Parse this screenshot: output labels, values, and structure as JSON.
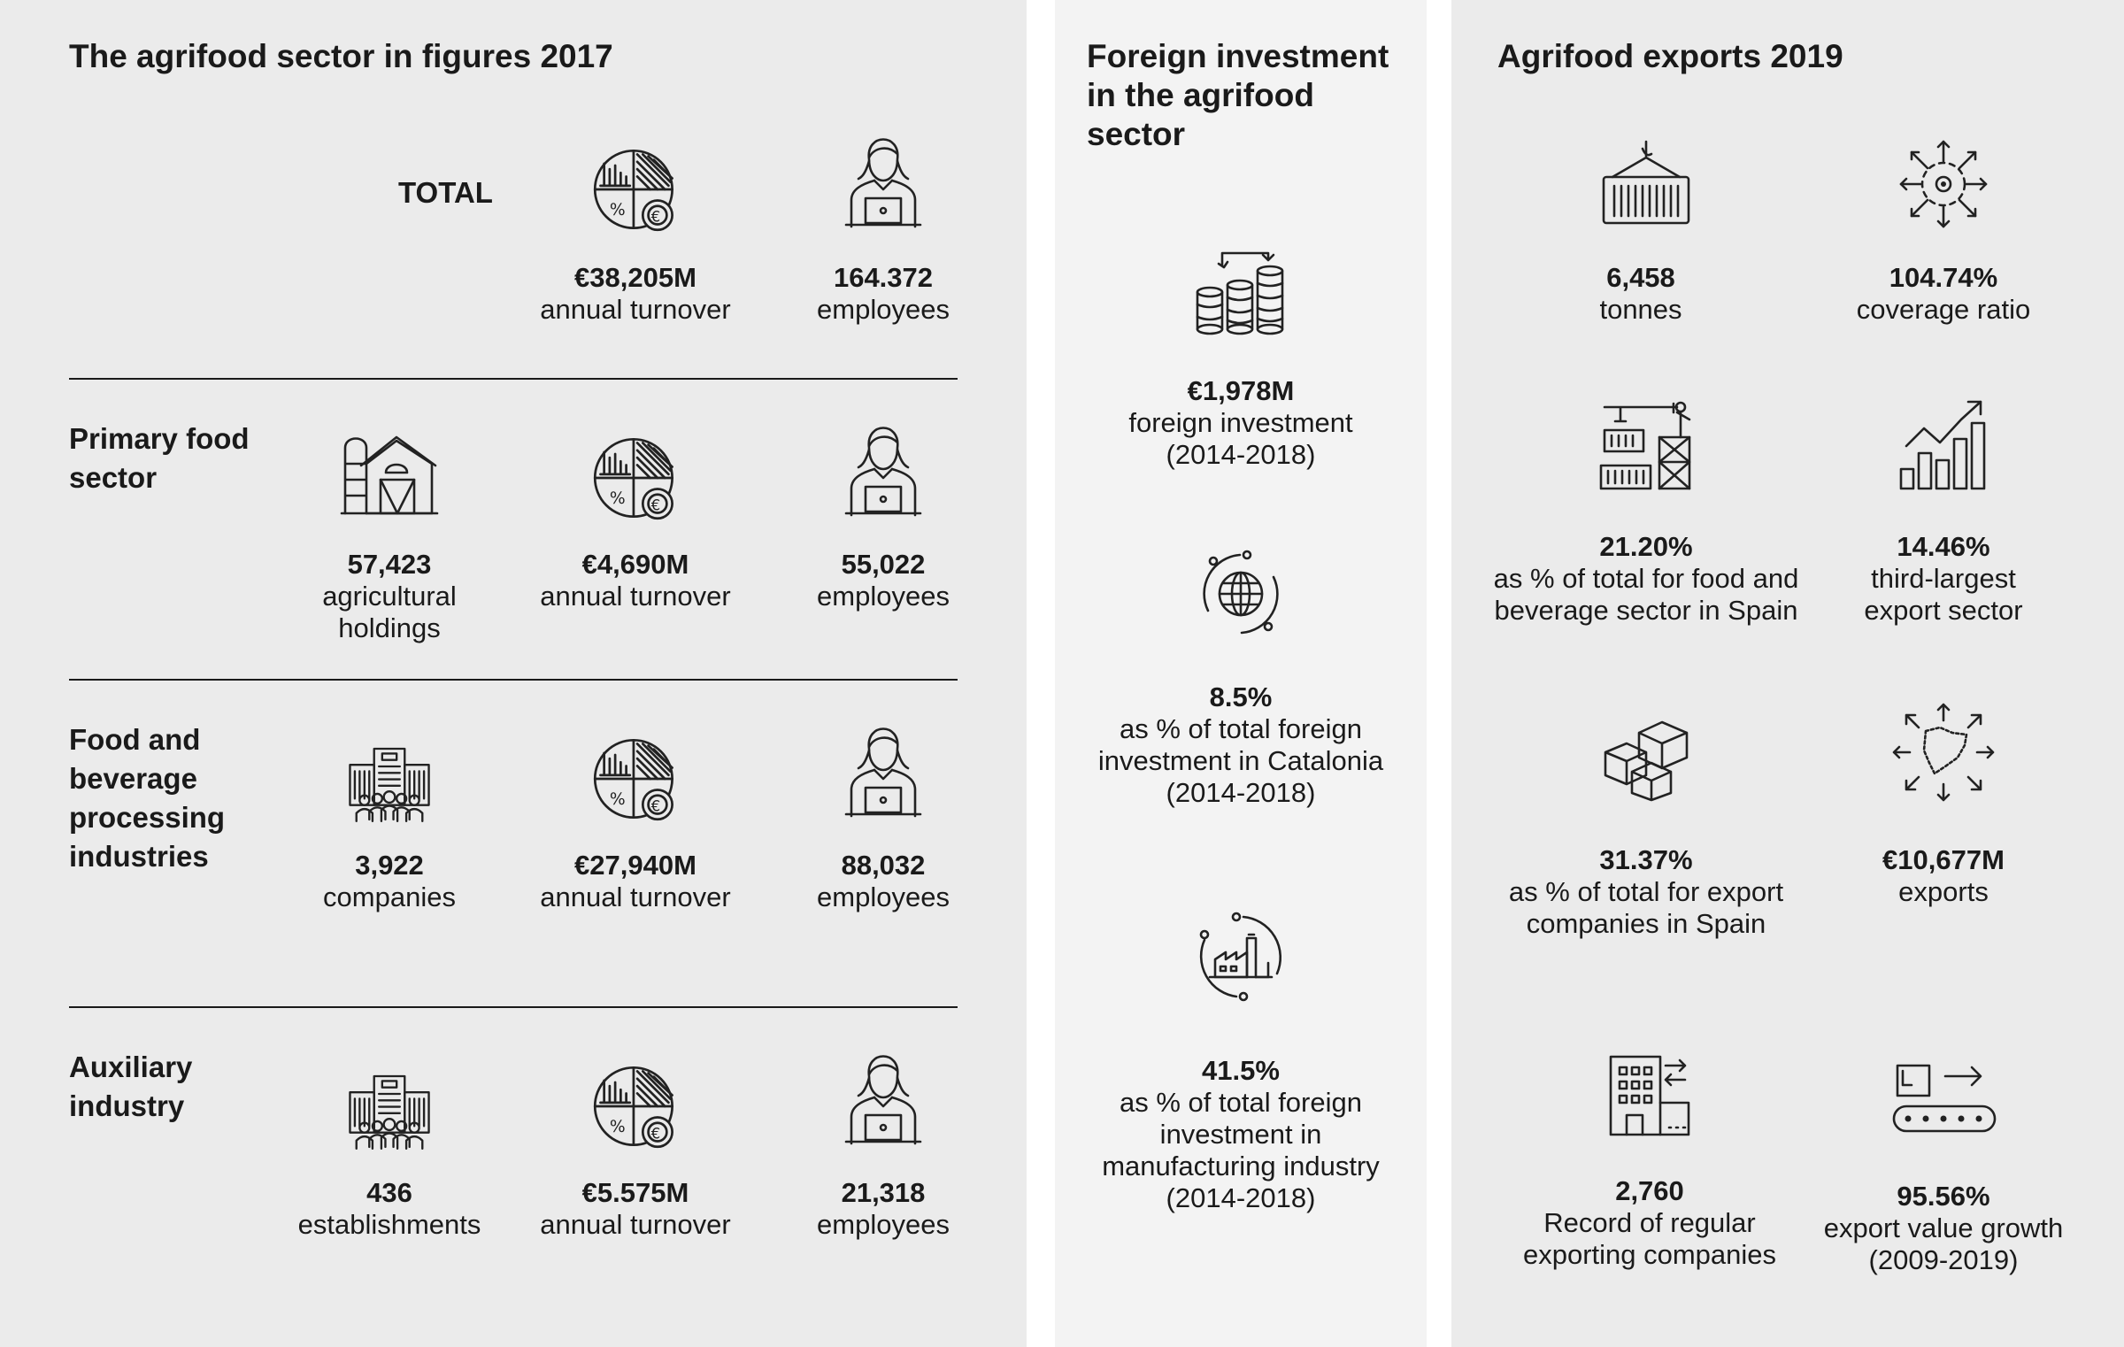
{
  "sector": {
    "title": "The agrifood sector in figures 2017",
    "total_label": "TOTAL",
    "total": {
      "turnover": {
        "value": "€38,205M",
        "desc": "annual turnover",
        "icon": "pie-chart-euro-icon"
      },
      "employees": {
        "value": "164.372",
        "desc": "employees",
        "icon": "worker-laptop-icon"
      }
    },
    "primary": {
      "label_lines": [
        "Primary food",
        "sector"
      ],
      "holdings": {
        "value": "57,423",
        "desc_lines": [
          "agricultural",
          "holdings"
        ],
        "icon": "farm-barn-icon"
      },
      "turnover": {
        "value": "€4,690M",
        "desc": "annual turnover"
      },
      "employees": {
        "value": "55,022",
        "desc": "employees"
      }
    },
    "processing": {
      "label_lines": [
        "Food and",
        "beverage",
        "processing",
        "industries"
      ],
      "companies": {
        "value": "3,922",
        "desc": "companies",
        "icon": "office-building-people-icon"
      },
      "turnover": {
        "value": "€27,940M",
        "desc": "annual turnover"
      },
      "employees": {
        "value": "88,032",
        "desc": "employees"
      }
    },
    "auxiliary": {
      "label_lines": [
        "Auxiliary",
        "industry"
      ],
      "establishments": {
        "value": "436",
        "desc": "establishments"
      },
      "turnover": {
        "value": "€5.575M",
        "desc": "annual turnover"
      },
      "employees": {
        "value": "21,318",
        "desc": "employees"
      }
    }
  },
  "foreign": {
    "title_lines": [
      "Foreign investment",
      "in the agrifood",
      "sector"
    ],
    "investment": {
      "value": "€1,978M",
      "desc_lines": [
        "foreign investment",
        "(2014-2018)"
      ],
      "icon": "coin-stacks-icon"
    },
    "catalonia": {
      "value": "8.5%",
      "desc_lines": [
        "as % of total foreign",
        "investment in Catalonia",
        "(2014-2018)"
      ],
      "icon": "globe-cycle-icon"
    },
    "manufacturing": {
      "value": "41.5%",
      "desc_lines": [
        "as % of total foreign",
        "investment in",
        "manufacturing industry",
        "(2014-2018)"
      ],
      "icon": "factory-cycle-icon"
    }
  },
  "exports": {
    "title": "Agrifood exports 2019",
    "tonnes": {
      "value": "6,458",
      "desc_lines": [
        "tonnes"
      ],
      "icon": "container-crane-icon"
    },
    "coverage": {
      "value": "104.74%",
      "desc_lines": [
        "coverage ratio"
      ],
      "icon": "virus-arrows-icon"
    },
    "share_food": {
      "value": "21.20%",
      "desc_lines": [
        "as % of total for food and",
        "beverage sector in Spain"
      ],
      "icon": "port-crane-containers-icon"
    },
    "third": {
      "value": "14.46%",
      "desc_lines": [
        "third-largest",
        "export sector"
      ],
      "icon": "bar-chart-growth-icon"
    },
    "share_export": {
      "value": "31.37%",
      "desc_lines": [
        "as % of total for export",
        "companies in Spain"
      ],
      "icon": "boxes-icon"
    },
    "value": {
      "value": "€10,677M",
      "desc_lines": [
        "exports"
      ],
      "icon": "catalonia-map-arrows-icon"
    },
    "record": {
      "value": "2,760",
      "desc_lines": [
        "Record of regular",
        "exporting companies"
      ],
      "icon": "building-exchange-icon"
    },
    "growth": {
      "value": "95.56%",
      "desc_lines": [
        "export value growth",
        "(2009-2019)"
      ],
      "icon": "conveyor-package-icon"
    }
  }
}
